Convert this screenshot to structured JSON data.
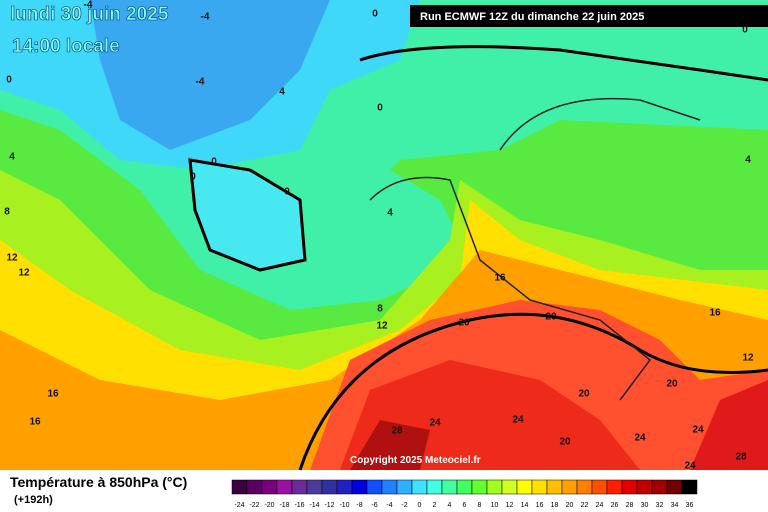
{
  "map": {
    "date": "lundi 30 juin 2025",
    "time": "14:00 locale",
    "run": "Run ECMWF 12Z du dimanche 22 juin 2025",
    "copyright": "Copyright 2025 Meteociel.fr",
    "contour_labels": [
      -4,
      -4,
      0,
      0,
      -4,
      4,
      0,
      0,
      0,
      0,
      0,
      4,
      4,
      8,
      4,
      12,
      12,
      16,
      8,
      12,
      20,
      20,
      16,
      12,
      16,
      16,
      20,
      20,
      28,
      24,
      24,
      20,
      24,
      24,
      28,
      24
    ]
  },
  "legend": {
    "title": "Température à 850hPa (°C)",
    "subtitle": "(+192h)",
    "ticks": [
      -24,
      -22,
      -20,
      -18,
      -16,
      -14,
      -12,
      -10,
      -8,
      -6,
      -4,
      -2,
      0,
      2,
      4,
      6,
      8,
      10,
      12,
      14,
      16,
      18,
      20,
      22,
      24,
      26,
      28,
      30,
      32,
      34,
      36
    ],
    "colors": [
      "#3a0040",
      "#5a0060",
      "#7a0080",
      "#9a10a0",
      "#6a2a9a",
      "#4a3a9a",
      "#3030a0",
      "#2020c0",
      "#0000e0",
      "#1050ff",
      "#2080ff",
      "#30b0ff",
      "#40e0ff",
      "#40ffe0",
      "#40ffa0",
      "#40ff60",
      "#60ff30",
      "#a0ff20",
      "#d0ff20",
      "#ffff00",
      "#ffe000",
      "#ffc000",
      "#ffa000",
      "#ff8000",
      "#ff5000",
      "#ff2000",
      "#e00000",
      "#c00000",
      "#a00000",
      "#700000",
      "#000000"
    ]
  }
}
